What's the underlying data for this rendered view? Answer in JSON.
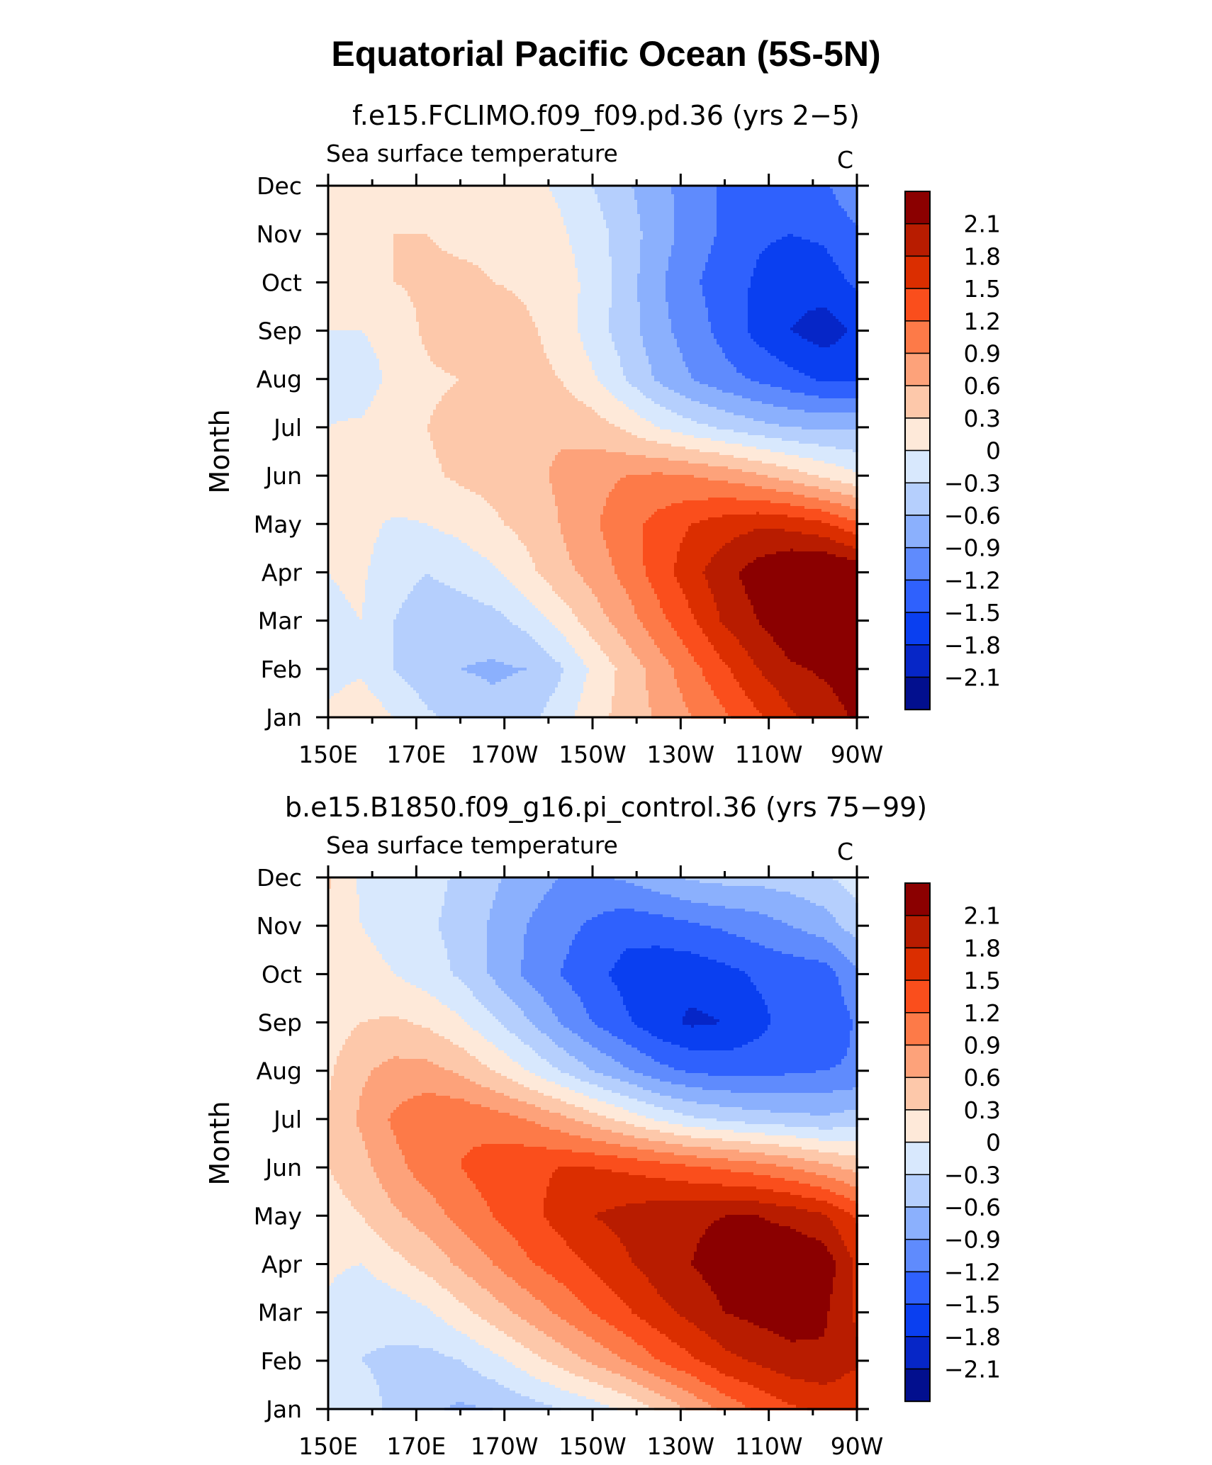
{
  "page": {
    "title": "Equatorial Pacific Ocean (5S-5N)"
  },
  "chart_data": [
    {
      "type": "heatmap",
      "run_title": "f.e15.FCLIMO.f09_f09.pd.36 (yrs 2−5)",
      "variable": "Sea surface temperature",
      "units": "C",
      "ylabel": "Month",
      "x_ticks": [
        "150E",
        "170E",
        "170W",
        "150W",
        "130W",
        "110W",
        "90W"
      ],
      "x_tick_values": [
        150,
        170,
        190,
        210,
        230,
        250,
        270
      ],
      "xlim": [
        150,
        270
      ],
      "y_ticks": [
        "Jan",
        "Feb",
        "Mar",
        "Apr",
        "May",
        "Jun",
        "Jul",
        "Aug",
        "Sep",
        "Oct",
        "Nov",
        "Dec"
      ],
      "ylim": [
        1,
        12
      ],
      "colorbar": {
        "labels": [
          "2.1",
          "1.8",
          "1.5",
          "1.2",
          "0.9",
          "0.6",
          "0.3",
          "0",
          "−0.3",
          "−0.6",
          "−0.9",
          "−1.2",
          "−1.5",
          "−1.8",
          "−2.1"
        ],
        "colors": [
          "#8b0000",
          "#b81c00",
          "#db2e00",
          "#fa4e1c",
          "#fd7a48",
          "#fda27a",
          "#fdc8aa",
          "#fee9d9",
          "#d8e8fd",
          "#b5cffd",
          "#8bb0fd",
          "#5f8bfd",
          "#2f61fd",
          "#0a3ff0",
          "#0626c7",
          "#020f8e"
        ]
      },
      "grid_x": [
        150,
        157.5,
        165,
        172.5,
        180,
        187.5,
        195,
        202.5,
        210,
        217.5,
        225,
        232.5,
        240,
        247.5,
        255,
        262.5,
        270
      ],
      "grid_y": [
        1,
        2,
        3,
        4,
        5,
        6,
        7,
        8,
        9,
        10,
        11,
        12
      ],
      "values": [
        [
          -0.1,
          0.05,
          -0.15,
          -0.4,
          -0.55,
          -0.65,
          -0.55,
          -0.3,
          0.05,
          0.25,
          0.5,
          0.75,
          1.0,
          1.3,
          1.6,
          1.8,
          2.0
        ],
        [
          -0.25,
          -0.2,
          -0.45,
          -0.65,
          -0.75,
          -0.8,
          -0.75,
          -0.5,
          -0.1,
          0.25,
          0.6,
          0.95,
          1.3,
          1.65,
          1.9,
          2.0,
          2.1
        ],
        [
          -0.2,
          -0.15,
          -0.45,
          -0.6,
          -0.6,
          -0.55,
          -0.35,
          -0.05,
          0.3,
          0.6,
          0.95,
          1.3,
          1.7,
          1.95,
          2.2,
          2.3,
          2.3
        ],
        [
          -0.15,
          -0.1,
          -0.35,
          -0.45,
          -0.35,
          -0.2,
          0.05,
          0.35,
          0.55,
          0.85,
          1.2,
          1.55,
          1.85,
          2.1,
          2.3,
          2.35,
          2.2
        ],
        [
          -0.1,
          -0.05,
          -0.2,
          -0.15,
          -0.05,
          0.1,
          0.25,
          0.45,
          0.7,
          0.95,
          1.15,
          1.35,
          1.5,
          1.6,
          1.55,
          1.4,
          1.1
        ],
        [
          -0.1,
          0.05,
          0.1,
          0.1,
          0.2,
          0.25,
          0.35,
          0.5,
          0.65,
          0.75,
          0.8,
          0.75,
          0.65,
          0.5,
          0.3,
          0.1,
          -0.1
        ],
        [
          -0.15,
          -0.1,
          0.1,
          0.15,
          0.25,
          0.35,
          0.4,
          0.4,
          0.3,
          0.1,
          -0.15,
          -0.35,
          -0.5,
          -0.65,
          -0.75,
          -0.8,
          -0.8
        ],
        [
          -0.25,
          -0.35,
          -0.05,
          0.1,
          0.15,
          0.2,
          0.25,
          0.15,
          -0.1,
          -0.45,
          -0.8,
          -1.05,
          -1.25,
          -1.4,
          -1.55,
          -1.7,
          -1.7
        ],
        [
          -0.15,
          -0.15,
          0.0,
          0.2,
          0.35,
          0.35,
          0.2,
          0.05,
          -0.3,
          -0.6,
          -0.95,
          -1.2,
          -1.45,
          -1.75,
          -1.95,
          -2.1,
          -1.9
        ],
        [
          0.05,
          0.1,
          0.15,
          0.2,
          0.2,
          0.15,
          0.1,
          0.0,
          -0.25,
          -0.6,
          -1.0,
          -1.3,
          -1.5,
          -1.7,
          -1.85,
          -1.8,
          -1.6
        ],
        [
          0.1,
          0.15,
          0.15,
          0.15,
          0.1,
          0.1,
          0.05,
          -0.1,
          -0.3,
          -0.6,
          -0.9,
          -1.2,
          -1.4,
          -1.6,
          -1.65,
          -1.6,
          -1.4
        ],
        [
          0.1,
          0.1,
          0.1,
          0.1,
          0.1,
          0.05,
          -0.05,
          -0.2,
          -0.45,
          -0.7,
          -0.95,
          -1.2,
          -1.4,
          -1.5,
          -1.5,
          -1.4,
          -1.1
        ]
      ]
    },
    {
      "type": "heatmap",
      "run_title": "b.e15.B1850.f09_g16.pi_control.36 (yrs 75−99)",
      "variable": "Sea surface temperature",
      "units": "C",
      "ylabel": "Month",
      "x_ticks": [
        "150E",
        "170E",
        "170W",
        "150W",
        "130W",
        "110W",
        "90W"
      ],
      "x_tick_values": [
        150,
        170,
        190,
        210,
        230,
        250,
        270
      ],
      "xlim": [
        150,
        270
      ],
      "y_ticks": [
        "Jan",
        "Feb",
        "Mar",
        "Apr",
        "May",
        "Jun",
        "Jul",
        "Aug",
        "Sep",
        "Oct",
        "Nov",
        "Dec"
      ],
      "ylim": [
        1,
        12
      ],
      "colorbar": {
        "labels": [
          "2.1",
          "1.8",
          "1.5",
          "1.2",
          "0.9",
          "0.6",
          "0.3",
          "0",
          "−0.3",
          "−0.6",
          "−0.9",
          "−1.2",
          "−1.5",
          "−1.8",
          "−2.1"
        ],
        "colors": [
          "#8b0000",
          "#b81c00",
          "#db2e00",
          "#fa4e1c",
          "#fd7a48",
          "#fda27a",
          "#fdc8aa",
          "#fee9d9",
          "#d8e8fd",
          "#b5cffd",
          "#8bb0fd",
          "#5f8bfd",
          "#2f61fd",
          "#0a3ff0",
          "#0626c7",
          "#020f8e"
        ]
      },
      "grid_x": [
        150,
        157.5,
        165,
        172.5,
        180,
        187.5,
        195,
        202.5,
        210,
        217.5,
        225,
        232.5,
        240,
        247.5,
        255,
        262.5,
        270
      ],
      "grid_y": [
        1,
        2,
        3,
        4,
        5,
        6,
        7,
        8,
        9,
        10,
        11,
        12
      ],
      "values": [
        [
          -0.2,
          -0.35,
          -0.5,
          -0.7,
          -0.8,
          -0.75,
          -0.6,
          -0.45,
          -0.3,
          -0.1,
          0.2,
          0.5,
          0.85,
          1.1,
          1.3,
          1.4,
          1.35
        ],
        [
          -0.25,
          -0.45,
          -0.5,
          -0.55,
          -0.45,
          -0.25,
          0.0,
          0.25,
          0.5,
          0.75,
          1.05,
          1.3,
          1.55,
          1.7,
          1.85,
          1.9,
          1.7
        ],
        [
          -0.2,
          -0.4,
          -0.35,
          -0.2,
          0.05,
          0.3,
          0.55,
          0.8,
          1.05,
          1.3,
          1.55,
          1.75,
          1.95,
          2.05,
          2.1,
          2.0,
          1.6
        ],
        [
          -0.1,
          -0.15,
          0.05,
          0.25,
          0.5,
          0.75,
          1.0,
          1.2,
          1.4,
          1.6,
          1.8,
          1.95,
          2.1,
          2.2,
          2.25,
          2.15,
          1.6
        ],
        [
          0.0,
          0.15,
          0.4,
          0.6,
          0.85,
          1.05,
          1.25,
          1.45,
          1.65,
          1.75,
          1.85,
          1.9,
          1.95,
          1.95,
          1.85,
          1.7,
          1.3
        ],
        [
          0.15,
          0.35,
          0.65,
          0.9,
          1.05,
          1.2,
          1.3,
          1.35,
          1.35,
          1.3,
          1.2,
          1.1,
          1.0,
          0.9,
          0.75,
          0.55,
          0.35
        ],
        [
          0.2,
          0.5,
          0.8,
          1.0,
          1.0,
          0.9,
          0.75,
          0.55,
          0.3,
          0.05,
          -0.2,
          -0.4,
          -0.5,
          -0.6,
          -0.65,
          -0.7,
          -0.6
        ],
        [
          0.1,
          0.4,
          0.55,
          0.55,
          0.4,
          0.15,
          -0.15,
          -0.45,
          -0.75,
          -1.0,
          -1.25,
          -1.4,
          -1.45,
          -1.45,
          -1.4,
          -1.35,
          -1.3
        ],
        [
          0.0,
          0.15,
          0.2,
          0.1,
          -0.1,
          -0.4,
          -0.7,
          -1.05,
          -1.35,
          -1.6,
          -1.85,
          -2.0,
          -1.95,
          -1.75,
          -1.5,
          -1.65,
          -1.3
        ],
        [
          0.0,
          -0.05,
          -0.15,
          -0.3,
          -0.5,
          -0.8,
          -1.1,
          -1.35,
          -1.55,
          -1.75,
          -1.85,
          -1.85,
          -1.75,
          -1.6,
          -1.55,
          -1.5,
          -1.1
        ],
        [
          0.05,
          -0.15,
          -0.25,
          -0.4,
          -0.55,
          -0.8,
          -1.05,
          -1.25,
          -1.4,
          -1.55,
          -1.5,
          -1.4,
          -1.3,
          -1.2,
          -1.05,
          -0.9,
          -0.6
        ],
        [
          0.2,
          -0.2,
          -0.3,
          -0.35,
          -0.5,
          -0.7,
          -0.9,
          -1.05,
          -1.1,
          -1.0,
          -0.85,
          -0.7,
          -0.65,
          -0.65,
          -0.6,
          -0.5,
          -0.3
        ]
      ]
    }
  ]
}
